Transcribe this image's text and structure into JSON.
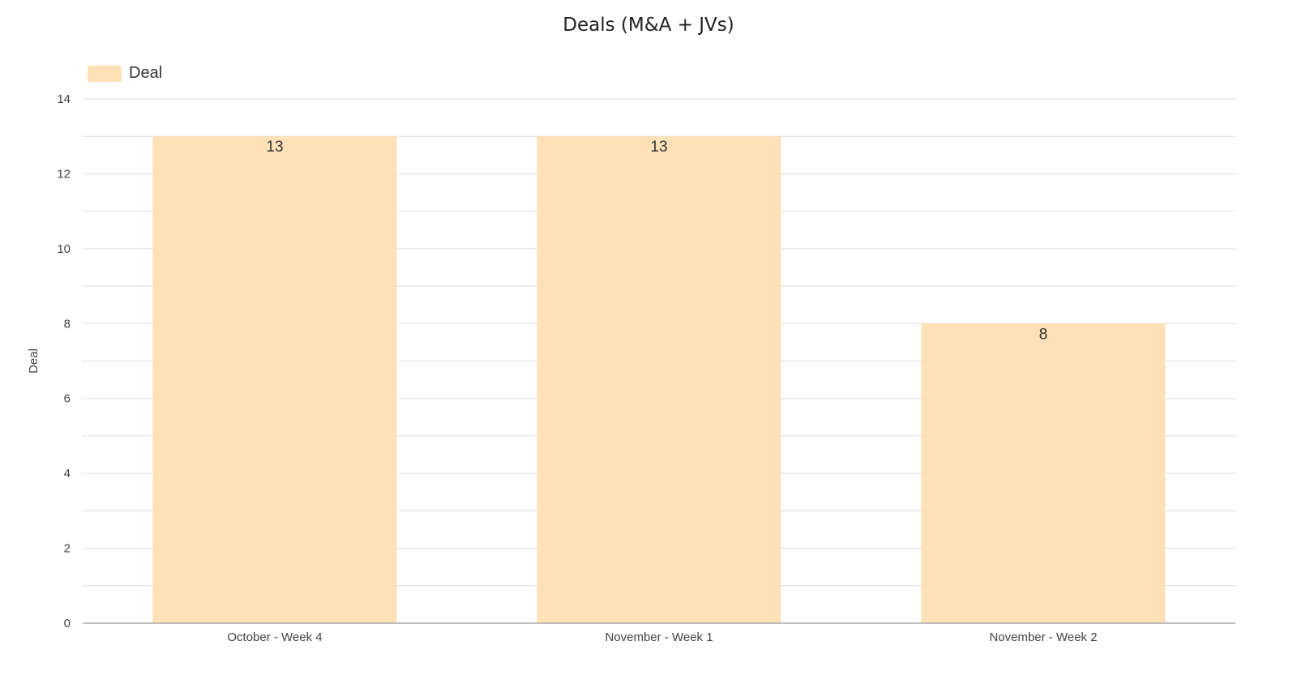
{
  "chart_data": {
    "type": "bar",
    "title": "Deals (M&A + JVs)",
    "categories": [
      "October - Week 4",
      "November - Week 1",
      "November - Week 2"
    ],
    "series": [
      {
        "name": "Deal",
        "values": [
          13,
          13,
          8
        ],
        "color": "#fee1b6"
      }
    ],
    "xlabel": "",
    "ylabel": "Deal",
    "ylim": [
      0,
      14
    ],
    "yticks": [
      0,
      2,
      4,
      6,
      8,
      10,
      12,
      14
    ],
    "grid": true,
    "legend_position": "top-left",
    "data_labels": true
  }
}
